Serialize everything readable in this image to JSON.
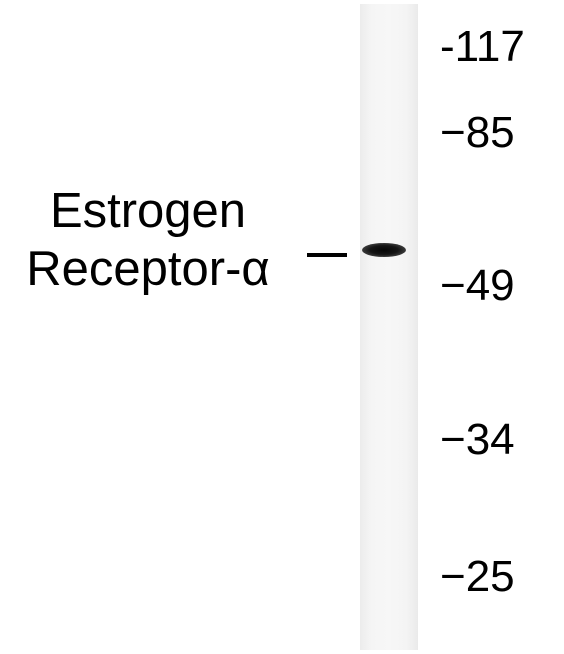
{
  "protein_label": {
    "line1": "Estrogen",
    "line2": "Receptor-α"
  },
  "markers": [
    "-117",
    "−85",
    "−49",
    "−34",
    "−25"
  ]
}
